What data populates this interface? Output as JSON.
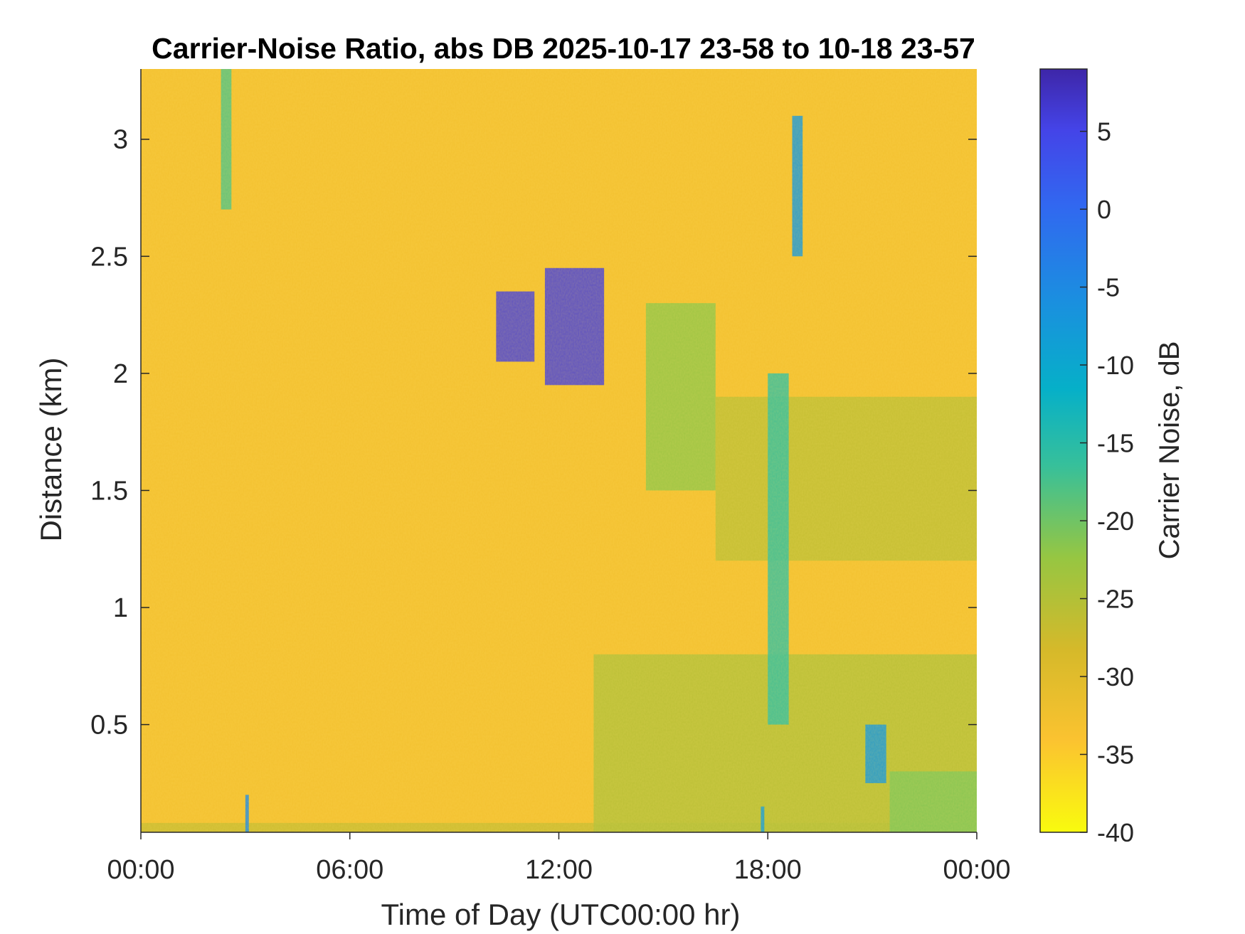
{
  "chart_data": {
    "type": "heatmap",
    "title": "Carrier-Noise Ratio, abs DB 2025-10-17 23-58 to 10-18 23-57",
    "xlabel": "Time of Day (UTC00:00 hr)",
    "ylabel": "Distance (km)",
    "xlim_hours": [
      0,
      24
    ],
    "ylim": [
      0.04,
      3.3
    ],
    "x_tick_labels": [
      "00:00",
      "06:00",
      "12:00",
      "18:00",
      "00:00"
    ],
    "y_tick_labels": [
      "0.5",
      "1",
      "1.5",
      "2",
      "2.5",
      "3"
    ],
    "colorbar": {
      "label": "Carrier Noise, dB",
      "range": [
        -40,
        9
      ],
      "tick_labels": [
        "5",
        "0",
        "-5",
        "-10",
        "-15",
        "-20",
        "-25",
        "-30",
        "-35",
        "-40"
      ]
    },
    "background_level_db": -33,
    "features": [
      {
        "hours": [
          0,
          24
        ],
        "km": [
          0.04,
          0.08
        ],
        "value_db": -27
      },
      {
        "hours": [
          2.3,
          2.6
        ],
        "km": [
          2.7,
          3.3
        ],
        "value_db": -18
      },
      {
        "hours": [
          3.0,
          3.1
        ],
        "km": [
          0.04,
          0.2
        ],
        "value_db": -5
      },
      {
        "hours": [
          10.2,
          11.3
        ],
        "km": [
          2.05,
          2.35
        ],
        "value_db": 6
      },
      {
        "hours": [
          11.6,
          13.3
        ],
        "km": [
          1.95,
          2.45
        ],
        "value_db": 6
      },
      {
        "hours": [
          14.5,
          16.5
        ],
        "km": [
          1.5,
          2.3
        ],
        "value_db": -22
      },
      {
        "hours": [
          16.5,
          24
        ],
        "km": [
          1.2,
          1.9
        ],
        "value_db": -26
      },
      {
        "hours": [
          13,
          24
        ],
        "km": [
          0.04,
          0.8
        ],
        "value_db": -25
      },
      {
        "hours": [
          21.5,
          24
        ],
        "km": [
          0.04,
          0.3
        ],
        "value_db": -21
      },
      {
        "hours": [
          18.0,
          18.6
        ],
        "km": [
          0.5,
          2.0
        ],
        "value_db": -16
      },
      {
        "hours": [
          18.7,
          19.0
        ],
        "km": [
          2.5,
          3.1
        ],
        "value_db": -7
      },
      {
        "hours": [
          20.8,
          21.4
        ],
        "km": [
          0.25,
          0.5
        ],
        "value_db": -7
      },
      {
        "hours": [
          17.8,
          17.9
        ],
        "km": [
          0.04,
          0.15
        ],
        "value_db": -8
      }
    ]
  }
}
